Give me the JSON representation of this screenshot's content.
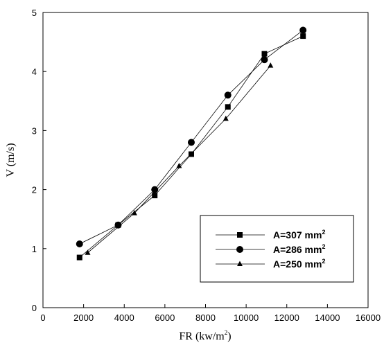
{
  "chart_data": {
    "type": "line",
    "xlabel_main": "FR (kw/m",
    "xlabel_sup": "2",
    "xlabel_end": ")",
    "ylabel": "V (m/s)",
    "xlim": [
      0,
      16000
    ],
    "ylim": [
      0,
      5
    ],
    "xticks": [
      0,
      2000,
      4000,
      6000,
      8000,
      10000,
      12000,
      14000,
      16000
    ],
    "yticks": [
      0,
      1,
      2,
      3,
      4,
      5
    ],
    "grid": false,
    "legend_position": "bottom-right",
    "series": [
      {
        "name_main": "A=307 mm",
        "name_sup": "2",
        "marker": "square",
        "x": [
          1800,
          3700,
          5500,
          7300,
          9100,
          10900,
          12800
        ],
        "y": [
          0.85,
          1.4,
          1.9,
          2.6,
          3.4,
          4.3,
          4.6
        ]
      },
      {
        "name_main": "A=286 mm",
        "name_sup": "2",
        "marker": "circle",
        "x": [
          1800,
          3700,
          5500,
          7300,
          9100,
          10900,
          12800
        ],
        "y": [
          1.08,
          1.4,
          2.0,
          2.8,
          3.6,
          4.2,
          4.7
        ]
      },
      {
        "name_main": "A=250 mm",
        "name_sup": "2",
        "marker": "triangle",
        "x": [
          2200,
          4500,
          6700,
          9000,
          11200
        ],
        "y": [
          0.93,
          1.6,
          2.4,
          3.2,
          4.1
        ]
      }
    ]
  }
}
